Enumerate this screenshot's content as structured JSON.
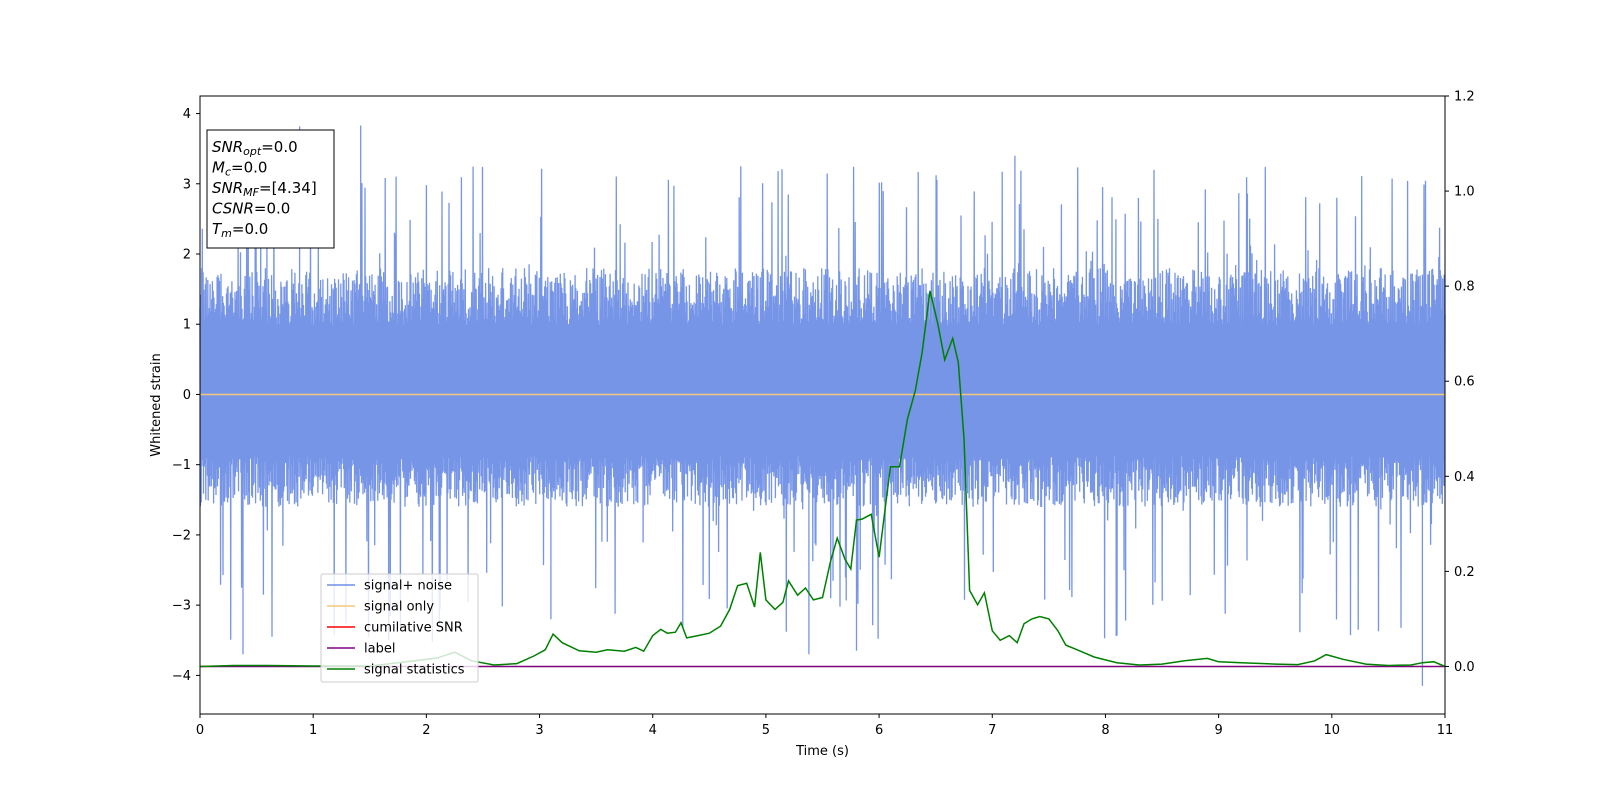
{
  "chart_data": {
    "type": "line",
    "xlabel": "Time (s)",
    "ylabel": "Whitened strain",
    "xlim": [
      0,
      11
    ],
    "ylim": [
      -4.55,
      4.25
    ],
    "y2lim": [
      -0.1,
      1.2
    ],
    "xticks": [
      "0",
      "1",
      "2",
      "3",
      "4",
      "5",
      "6",
      "7",
      "8",
      "9",
      "10",
      "11"
    ],
    "yticks": [
      "−4",
      "−3",
      "−2",
      "−1",
      "0",
      "1",
      "2",
      "3",
      "4"
    ],
    "y2ticks": [
      "0.0",
      "0.2",
      "0.4",
      "0.6",
      "0.8",
      "1.0",
      "1.2"
    ],
    "grid": false,
    "legend_position": "lower-left",
    "annotation": {
      "lines": [
        {
          "main": "SNR",
          "sub": "opt",
          "value": "=0.0"
        },
        {
          "main": "M",
          "sub": "c",
          "value": "=0.0"
        },
        {
          "main": "SNR",
          "sub": "MF",
          "value": "=[4.34]"
        },
        {
          "main": "CSNR",
          "sub": "",
          "value": "=0.0"
        },
        {
          "main": "T",
          "sub": "m",
          "value": "=0.0"
        }
      ]
    },
    "series": [
      {
        "name": "signal+ noise",
        "color": "#6f8fe6",
        "axis": "left",
        "kind": "noise",
        "envelope_typical": [
          -1.6,
          1.8
        ],
        "envelope_extreme": [
          -4.15,
          3.83
        ],
        "spikes": [
          [
            1.42,
            3.83
          ],
          [
            0.88,
            3.82
          ],
          [
            10.8,
            -4.15
          ],
          [
            0.38,
            -3.7
          ],
          [
            5.8,
            -3.65
          ],
          [
            5.38,
            -3.7
          ],
          [
            7.2,
            3.4
          ],
          [
            3.1,
            -3.2
          ]
        ]
      },
      {
        "name": "signal only",
        "color": "#f5c77e",
        "axis": "left",
        "x": [
          0,
          11
        ],
        "y": [
          0,
          0
        ]
      },
      {
        "name": "cumilative SNR",
        "color": "#ff0000",
        "axis": "right",
        "x": [],
        "y": []
      },
      {
        "name": "label",
        "color": "#800080",
        "axis": "right",
        "x": [
          0,
          11
        ],
        "y": [
          0,
          0
        ]
      },
      {
        "name": "signal statistics",
        "color": "#008000",
        "axis": "right",
        "x": [
          0,
          0.3,
          0.6,
          1.0,
          1.5,
          1.9,
          2.1,
          2.25,
          2.4,
          2.6,
          2.8,
          2.95,
          3.05,
          3.12,
          3.2,
          3.35,
          3.5,
          3.6,
          3.75,
          3.85,
          3.92,
          4.0,
          4.07,
          4.13,
          4.2,
          4.25,
          4.3,
          4.4,
          4.5,
          4.6,
          4.68,
          4.75,
          4.83,
          4.9,
          4.95,
          5.0,
          5.08,
          5.15,
          5.2,
          5.28,
          5.35,
          5.42,
          5.5,
          5.57,
          5.63,
          5.7,
          5.75,
          5.8,
          5.85,
          5.93,
          6.0,
          6.1,
          6.18,
          6.25,
          6.32,
          6.38,
          6.45,
          6.52,
          6.58,
          6.65,
          6.7,
          6.75,
          6.8,
          6.87,
          6.93,
          7.0,
          7.07,
          7.15,
          7.22,
          7.28,
          7.35,
          7.42,
          7.5,
          7.58,
          7.65,
          7.75,
          7.9,
          8.1,
          8.3,
          8.5,
          8.7,
          8.9,
          9.0,
          9.2,
          9.5,
          9.7,
          9.85,
          9.95,
          10.1,
          10.3,
          10.5,
          10.7,
          10.8,
          10.9,
          11.0
        ],
        "y": [
          0.0,
          0.002,
          0.002,
          0.001,
          0.001,
          0.012,
          0.018,
          0.03,
          0.012,
          0.003,
          0.006,
          0.022,
          0.035,
          0.068,
          0.05,
          0.033,
          0.03,
          0.035,
          0.032,
          0.04,
          0.032,
          0.065,
          0.078,
          0.07,
          0.072,
          0.092,
          0.06,
          0.065,
          0.07,
          0.085,
          0.12,
          0.17,
          0.175,
          0.125,
          0.24,
          0.14,
          0.12,
          0.135,
          0.18,
          0.15,
          0.165,
          0.14,
          0.145,
          0.22,
          0.27,
          0.225,
          0.205,
          0.308,
          0.31,
          0.32,
          0.23,
          0.42,
          0.42,
          0.52,
          0.58,
          0.66,
          0.79,
          0.72,
          0.645,
          0.69,
          0.64,
          0.48,
          0.16,
          0.13,
          0.155,
          0.075,
          0.055,
          0.065,
          0.05,
          0.09,
          0.1,
          0.105,
          0.1,
          0.075,
          0.045,
          0.035,
          0.02,
          0.008,
          0.003,
          0.005,
          0.012,
          0.017,
          0.01,
          0.008,
          0.005,
          0.004,
          0.012,
          0.025,
          0.015,
          0.005,
          0.002,
          0.003,
          0.008,
          0.01,
          0.0
        ]
      }
    ]
  }
}
